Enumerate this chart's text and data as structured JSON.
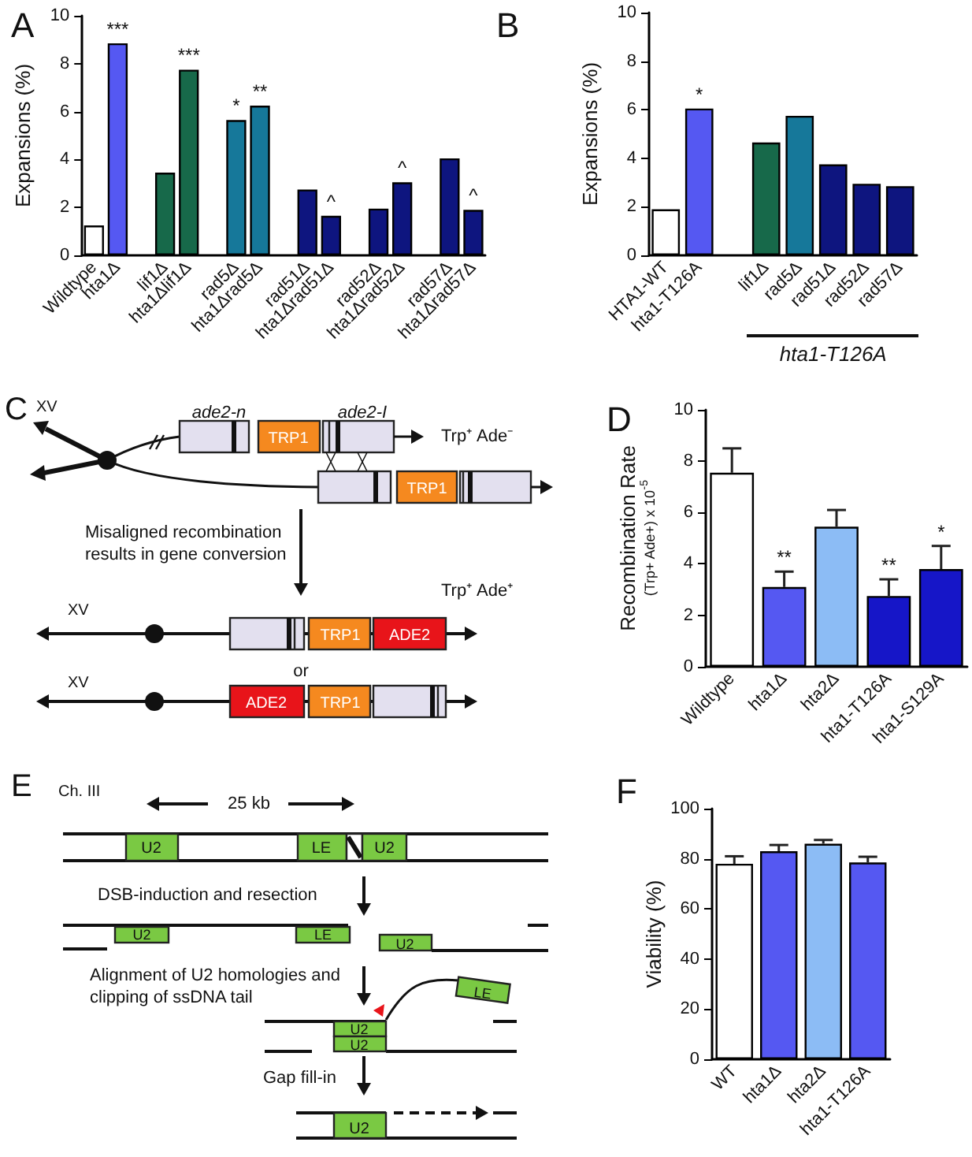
{
  "chart_data": [
    {
      "type": "bar",
      "title": "A",
      "ylabel": "Expansions (%)",
      "categories": [
        "Wildtype",
        "hta1Δ",
        null,
        "lif1Δ",
        "hta1Δlif1Δ",
        null,
        "rad5Δ",
        "hta1Δrad5Δ",
        null,
        "rad51Δ",
        "hta1Δrad51Δ",
        null,
        "rad52Δ",
        "hta1Δrad52Δ",
        null,
        "rad57Δ",
        "hta1Δrad57Δ"
      ],
      "values": [
        1.25,
        8.85,
        null,
        3.45,
        7.75,
        null,
        5.65,
        6.25,
        null,
        2.75,
        1.65,
        null,
        1.95,
        3.05,
        null,
        4.05,
        1.9
      ],
      "colors": [
        "#ffffff",
        "#5558f2",
        null,
        "#17694a",
        "#17694a",
        null,
        "#16789a",
        "#16789a",
        null,
        "#0e157f",
        "#0e157f",
        null,
        "#0e157f",
        "#0e157f",
        null,
        "#0e157f",
        "#0e157f"
      ],
      "ylim": [
        0,
        10
      ],
      "yticks": [
        0,
        2,
        4,
        6,
        8,
        10
      ],
      "annotations": [
        {
          "text": "***",
          "x": "hta1Δ",
          "y": 8.85
        },
        {
          "text": "***",
          "x": "hta1Δlif1Δ",
          "y": 7.75
        },
        {
          "text": "*",
          "x": "rad5Δ",
          "y": 5.65
        },
        {
          "text": "**",
          "x": "hta1Δrad5Δ",
          "y": 6.25
        },
        {
          "text": "^",
          "x": "hta1Δrad51Δ",
          "y": 1.65
        },
        {
          "text": "^",
          "x": "hta1Δrad52Δ",
          "y": 3.05
        },
        {
          "text": "^",
          "x": "hta1Δrad57Δ",
          "y": 1.9
        }
      ]
    },
    {
      "type": "bar",
      "title": "B",
      "ylabel": "Expansions (%)",
      "categories": [
        "HTA1-WT",
        "hta1-T126A",
        null,
        "lif1Δ",
        "rad5Δ",
        "rad51Δ",
        "rad52Δ",
        "rad57Δ"
      ],
      "values": [
        1.9,
        6.05,
        null,
        4.65,
        5.75,
        3.75,
        2.95,
        2.85
      ],
      "colors": [
        "#ffffff",
        "#5558f2",
        null,
        "#17694a",
        "#16789a",
        "#0e157f",
        "#0e157f",
        "#0e157f"
      ],
      "ylim": [
        0,
        10
      ],
      "yticks": [
        0,
        2,
        4,
        6,
        8,
        10
      ],
      "annotations": [
        {
          "text": "*",
          "x": "hta1-T126A",
          "y": 6.05
        },
        "hta1-T126A"
      ]
    },
    {
      "type": "other",
      "title": "C",
      "annotations": [
        "XV",
        "ade2-n",
        "ade2-I",
        "TRP1",
        "Trp⁺ Ade⁻",
        "TRP1",
        "Misaligned recombination results in gene conversion",
        "Trp⁺ Ade⁺",
        "XV",
        "TRP1",
        "ADE2",
        "or",
        "XV",
        "ADE2",
        "TRP1"
      ]
    },
    {
      "type": "bar",
      "title": "D",
      "ylabel": "Recombination Rate\n(Trp+ Ade+) x 10$^{-5}$",
      "categories": [
        "Wildtype",
        "hta1Δ",
        "hta2Δ",
        "hta1-T126A",
        "hta1-S129A"
      ],
      "values": [
        7.55,
        3.1,
        5.45,
        2.75,
        3.8
      ],
      "colors": [
        "#ffffff",
        "#5558f2",
        "#8cbcf5",
        "#1616c8",
        "#1616c8"
      ],
      "errors": [
        [
          7.55,
          8.5
        ],
        [
          3.1,
          3.7
        ],
        [
          5.45,
          6.1
        ],
        [
          2.75,
          3.4
        ],
        [
          3.8,
          4.7
        ]
      ],
      "ylim": [
        0,
        10
      ],
      "yticks": [
        0,
        2,
        4,
        6,
        8,
        10
      ],
      "annotations": [
        {
          "text": "**",
          "x": "hta1Δ",
          "y": 3.7
        },
        {
          "text": "**",
          "x": "hta1-T126A",
          "y": 3.4
        },
        {
          "text": "*",
          "x": "hta1-S129A",
          "y": 4.7
        }
      ]
    },
    {
      "type": "other",
      "title": "E",
      "annotations": [
        "Ch. III",
        "25 kb",
        "U2",
        "LE",
        "U2",
        "DSB-induction and resection",
        "U2",
        "LE",
        "U2",
        "Alignment of U2 homologies and clipping of ssDNA tail",
        "LE",
        "U2",
        "U2",
        "Gap fill-in",
        "U2"
      ]
    },
    {
      "type": "bar",
      "title": "F",
      "ylabel": "Viability (%)",
      "categories": [
        "WT",
        "hta1Δ",
        "hta2Δ",
        "hta1-T126A"
      ],
      "values": [
        78,
        83,
        86,
        78.5
      ],
      "colors": [
        "#ffffff",
        "#5558f2",
        "#8cbcf5",
        "#5558f2"
      ],
      "errors": [
        [
          78,
          81
        ],
        [
          83,
          85.5
        ],
        [
          86,
          87.5
        ],
        [
          78.5,
          80.8
        ]
      ],
      "ylim": [
        0,
        100
      ],
      "yticks": [
        0,
        20,
        40,
        60,
        80,
        100
      ]
    }
  ]
}
